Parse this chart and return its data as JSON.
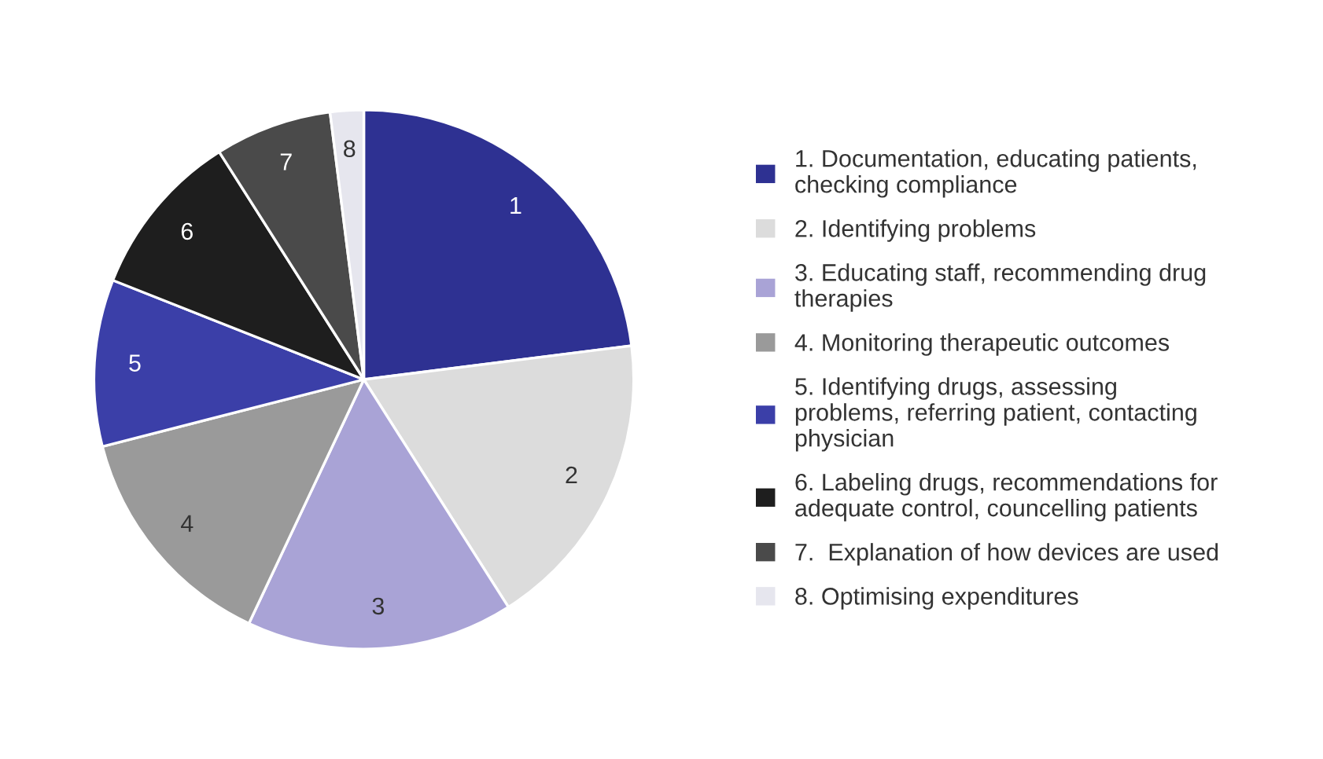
{
  "chart_data": {
    "type": "pie",
    "categories": [
      "1. Documentation, educating patients,\nchecking compliance",
      "2. Identifying problems",
      "3. Educating staff, recommending drug\ntherapies",
      "4. Monitoring therapeutic outcomes",
      "5. Identifying drugs, assessing\nproblems, referring patient, contacting\nphysician",
      "6. Labeling drugs, recommendations for\nadequate control, councelling patients",
      "7.  Explanation of how devices are used",
      "8. Optimising expenditures"
    ],
    "values": [
      23,
      18,
      16,
      14,
      10,
      10,
      7,
      2
    ],
    "colors": [
      "#2e3192",
      "#dcdcdc",
      "#a9a3d6",
      "#9a9a9a",
      "#3b3fa8",
      "#1e1e1e",
      "#4a4a4a",
      "#e6e6ee"
    ],
    "annotations": [
      "1",
      "2",
      "3",
      "4",
      "5",
      "6",
      "7",
      "8"
    ],
    "legend": "right"
  }
}
